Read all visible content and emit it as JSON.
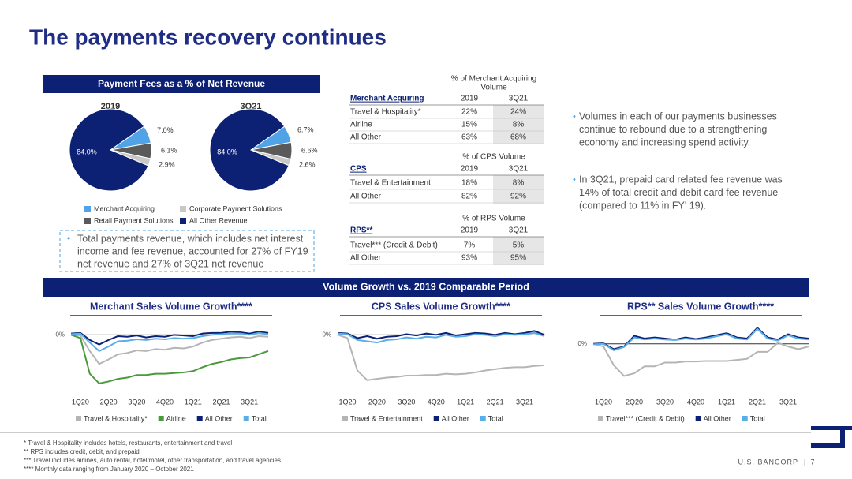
{
  "header": {
    "title": "The payments recovery continues"
  },
  "pie_section": {
    "title": "Payment Fees as a % of Net Revenue",
    "legend": [
      "Merchant Acquiring",
      "Corporate Payment Solutions",
      "Retail Payment Solutions",
      "All Other Revenue"
    ],
    "colors": [
      "#4fa3e6",
      "#c8c8c8",
      "#5a5a5a",
      "#0c2074"
    ],
    "note": [
      "Total payments revenue, which includes net interest",
      "income and fee revenue, accounted for 27% of FY19",
      "net revenue and 27% of 3Q21 net revenue"
    ]
  },
  "tables": [
    {
      "caption": [
        "% of Merchant Acquiring",
        "Volume"
      ],
      "columns": [
        "Merchant Acquiring",
        "2019",
        "3Q21"
      ],
      "rows": [
        [
          "Travel & Hospitality*",
          "22%",
          "24%"
        ],
        [
          "Airline",
          "15%",
          "8%"
        ],
        [
          "All Other",
          "63%",
          "68%"
        ]
      ]
    },
    {
      "caption": [
        "% of CPS Volume"
      ],
      "columns": [
        "CPS",
        "2019",
        "3Q21"
      ],
      "rows": [
        [
          "Travel & Entertainment",
          "18%",
          "8%"
        ],
        [
          "All Other",
          "82%",
          "92%"
        ]
      ]
    },
    {
      "caption": [
        "% of RPS Volume"
      ],
      "columns": [
        "RPS**",
        "2019",
        "3Q21"
      ],
      "rows": [
        [
          "Travel*** (Credit & Debit)",
          "7%",
          "5%"
        ],
        [
          "All Other",
          "93%",
          "95%"
        ]
      ]
    }
  ],
  "bullets": [
    [
      "Volumes in each of our payments businesses",
      "continue to rebound due to a strengthening",
      "economy and increasing spend activity."
    ],
    [
      "In 3Q21, prepaid card related fee revenue was",
      "14% of total credit and debit card fee revenue",
      "(compared to 11% in FY' 19)."
    ]
  ],
  "volume_section": {
    "title": "Volume Growth vs. 2019 Comparable Period"
  },
  "chart_data": [
    {
      "type": "pie",
      "title": "2019",
      "values": [
        7.0,
        2.9,
        6.1,
        84.0
      ],
      "value_labels": [
        "7.0%",
        "2.9%",
        "6.1%",
        "84.0%"
      ]
    },
    {
      "type": "pie",
      "title": "3Q21",
      "values": [
        6.7,
        2.6,
        6.6,
        84.0
      ],
      "value_labels": [
        "6.7%",
        "2.6%",
        "6.6%",
        "84.0%"
      ]
    },
    {
      "type": "line",
      "title": "Merchant Sales Volume Growth****",
      "x": [
        0,
        1,
        2,
        3,
        4,
        5,
        6,
        7,
        8,
        9,
        10,
        11,
        12,
        13,
        14,
        15,
        16,
        17,
        18,
        19,
        20,
        21
      ],
      "xlim": [
        0,
        21
      ],
      "xticks": [
        {
          "value": 1,
          "label": "1Q20"
        },
        {
          "value": 4,
          "label": "2Q20"
        },
        {
          "value": 7,
          "label": "3Q20"
        },
        {
          "value": 10,
          "label": "4Q20"
        },
        {
          "value": 13,
          "label": "1Q21"
        },
        {
          "value": 16,
          "label": "2Q21"
        },
        {
          "value": 19,
          "label": "3Q21"
        }
      ],
      "ylim": [
        -80,
        15
      ],
      "yticks": [
        {
          "value": 0,
          "label": "0%"
        }
      ],
      "series": [
        {
          "name": "Travel & Hospitality*",
          "color": "#b5b5b5",
          "values": [
            0,
            -1,
            -25,
            -45,
            -38,
            -30,
            -28,
            -24,
            -25,
            -22,
            -23,
            -20,
            -21,
            -18,
            -12,
            -8,
            -6,
            -4,
            -3,
            -5,
            -2,
            -3
          ]
        },
        {
          "name": "Airline",
          "color": "#4a9a3c",
          "values": [
            0,
            -5,
            -60,
            -75,
            -72,
            -68,
            -66,
            -62,
            -62,
            -60,
            -60,
            -59,
            -58,
            -56,
            -50,
            -45,
            -42,
            -38,
            -36,
            -35,
            -30,
            -25
          ]
        },
        {
          "name": "All Other",
          "color": "#0c2074",
          "values": [
            2,
            3,
            -8,
            -15,
            -8,
            -2,
            -3,
            -1,
            -4,
            -2,
            -3,
            0,
            -1,
            -2,
            2,
            3,
            3,
            5,
            4,
            2,
            5,
            3
          ]
        },
        {
          "name": "Total",
          "color": "#5aaee8",
          "values": [
            1,
            2,
            -12,
            -25,
            -18,
            -10,
            -9,
            -7,
            -8,
            -6,
            -7,
            -5,
            -6,
            -5,
            -2,
            0,
            1,
            2,
            2,
            0,
            3,
            1
          ]
        }
      ]
    },
    {
      "type": "line",
      "title": "CPS Sales Volume Growth****",
      "x": [
        0,
        1,
        2,
        3,
        4,
        5,
        6,
        7,
        8,
        9,
        10,
        11,
        12,
        13,
        14,
        15,
        16,
        17,
        18,
        19,
        20,
        21
      ],
      "xlim": [
        0,
        21
      ],
      "xticks": [
        {
          "value": 1,
          "label": "1Q20"
        },
        {
          "value": 4,
          "label": "2Q20"
        },
        {
          "value": 7,
          "label": "3Q20"
        },
        {
          "value": 10,
          "label": "4Q20"
        },
        {
          "value": 13,
          "label": "1Q21"
        },
        {
          "value": 16,
          "label": "2Q21"
        },
        {
          "value": 19,
          "label": "3Q21"
        }
      ],
      "ylim": [
        -80,
        15
      ],
      "yticks": [
        {
          "value": 0,
          "label": "0%"
        }
      ],
      "series": [
        {
          "name": "Travel & Entertainment",
          "color": "#b5b5b5",
          "values": [
            0,
            -5,
            -55,
            -70,
            -68,
            -66,
            -65,
            -63,
            -63,
            -62,
            -62,
            -60,
            -61,
            -60,
            -58,
            -55,
            -53,
            -51,
            -50,
            -50,
            -48,
            -47
          ]
        },
        {
          "name": "All Other",
          "color": "#0c2074",
          "values": [
            3,
            2,
            -5,
            -2,
            -6,
            -3,
            -2,
            1,
            -1,
            2,
            0,
            3,
            -1,
            1,
            3,
            2,
            0,
            3,
            1,
            3,
            6,
            0
          ]
        },
        {
          "name": "Total",
          "color": "#5aaee8",
          "values": [
            2,
            1,
            -8,
            -10,
            -12,
            -8,
            -7,
            -4,
            -6,
            -3,
            -4,
            0,
            -3,
            -2,
            1,
            0,
            -2,
            1,
            0,
            1,
            3,
            -2
          ]
        }
      ]
    },
    {
      "type": "line",
      "title": "RPS** Sales Volume Growth****",
      "x": [
        0,
        1,
        2,
        3,
        4,
        5,
        6,
        7,
        8,
        9,
        10,
        11,
        12,
        13,
        14,
        15,
        16,
        17,
        18,
        19,
        20,
        21
      ],
      "xlim": [
        0,
        21
      ],
      "xticks": [
        {
          "value": 1,
          "label": "1Q20"
        },
        {
          "value": 4,
          "label": "2Q20"
        },
        {
          "value": 7,
          "label": "3Q20"
        },
        {
          "value": 10,
          "label": "4Q20"
        },
        {
          "value": 13,
          "label": "1Q21"
        },
        {
          "value": 16,
          "label": "2Q21"
        },
        {
          "value": 19,
          "label": "3Q21"
        }
      ],
      "ylim": [
        -80,
        35
      ],
      "yticks": [
        {
          "value": 0,
          "label": "0%"
        }
      ],
      "series": [
        {
          "name": "Travel*** (Credit & Debit)",
          "color": "#b5b5b5",
          "values": [
            0,
            -5,
            -40,
            -60,
            -55,
            -42,
            -42,
            -35,
            -35,
            -33,
            -33,
            -32,
            -32,
            -32,
            -30,
            -28,
            -15,
            -15,
            2,
            -5,
            -10,
            -5
          ]
        },
        {
          "name": "All Other",
          "color": "#0c2074",
          "values": [
            0,
            1,
            -10,
            -5,
            15,
            10,
            12,
            10,
            8,
            12,
            9,
            12,
            16,
            20,
            12,
            10,
            30,
            12,
            8,
            18,
            12,
            10
          ]
        },
        {
          "name": "Total",
          "color": "#5aaee8",
          "values": [
            -1,
            0,
            -12,
            -6,
            12,
            8,
            10,
            8,
            7,
            10,
            8,
            10,
            14,
            18,
            10,
            8,
            28,
            10,
            6,
            16,
            10,
            8
          ]
        }
      ]
    }
  ],
  "footnotes": [
    "* Travel & Hospitality includes hotels, restaurants, entertainment and travel",
    "** RPS includes credit, debit, and prepaid",
    "*** Travel includes airlines, auto rental, hotel/motel, other transportation, and travel agencies",
    "**** Monthly data ranging from January 2020 – October 2021"
  ],
  "footer": {
    "company": "U.S. BANCORP",
    "page": "7"
  }
}
